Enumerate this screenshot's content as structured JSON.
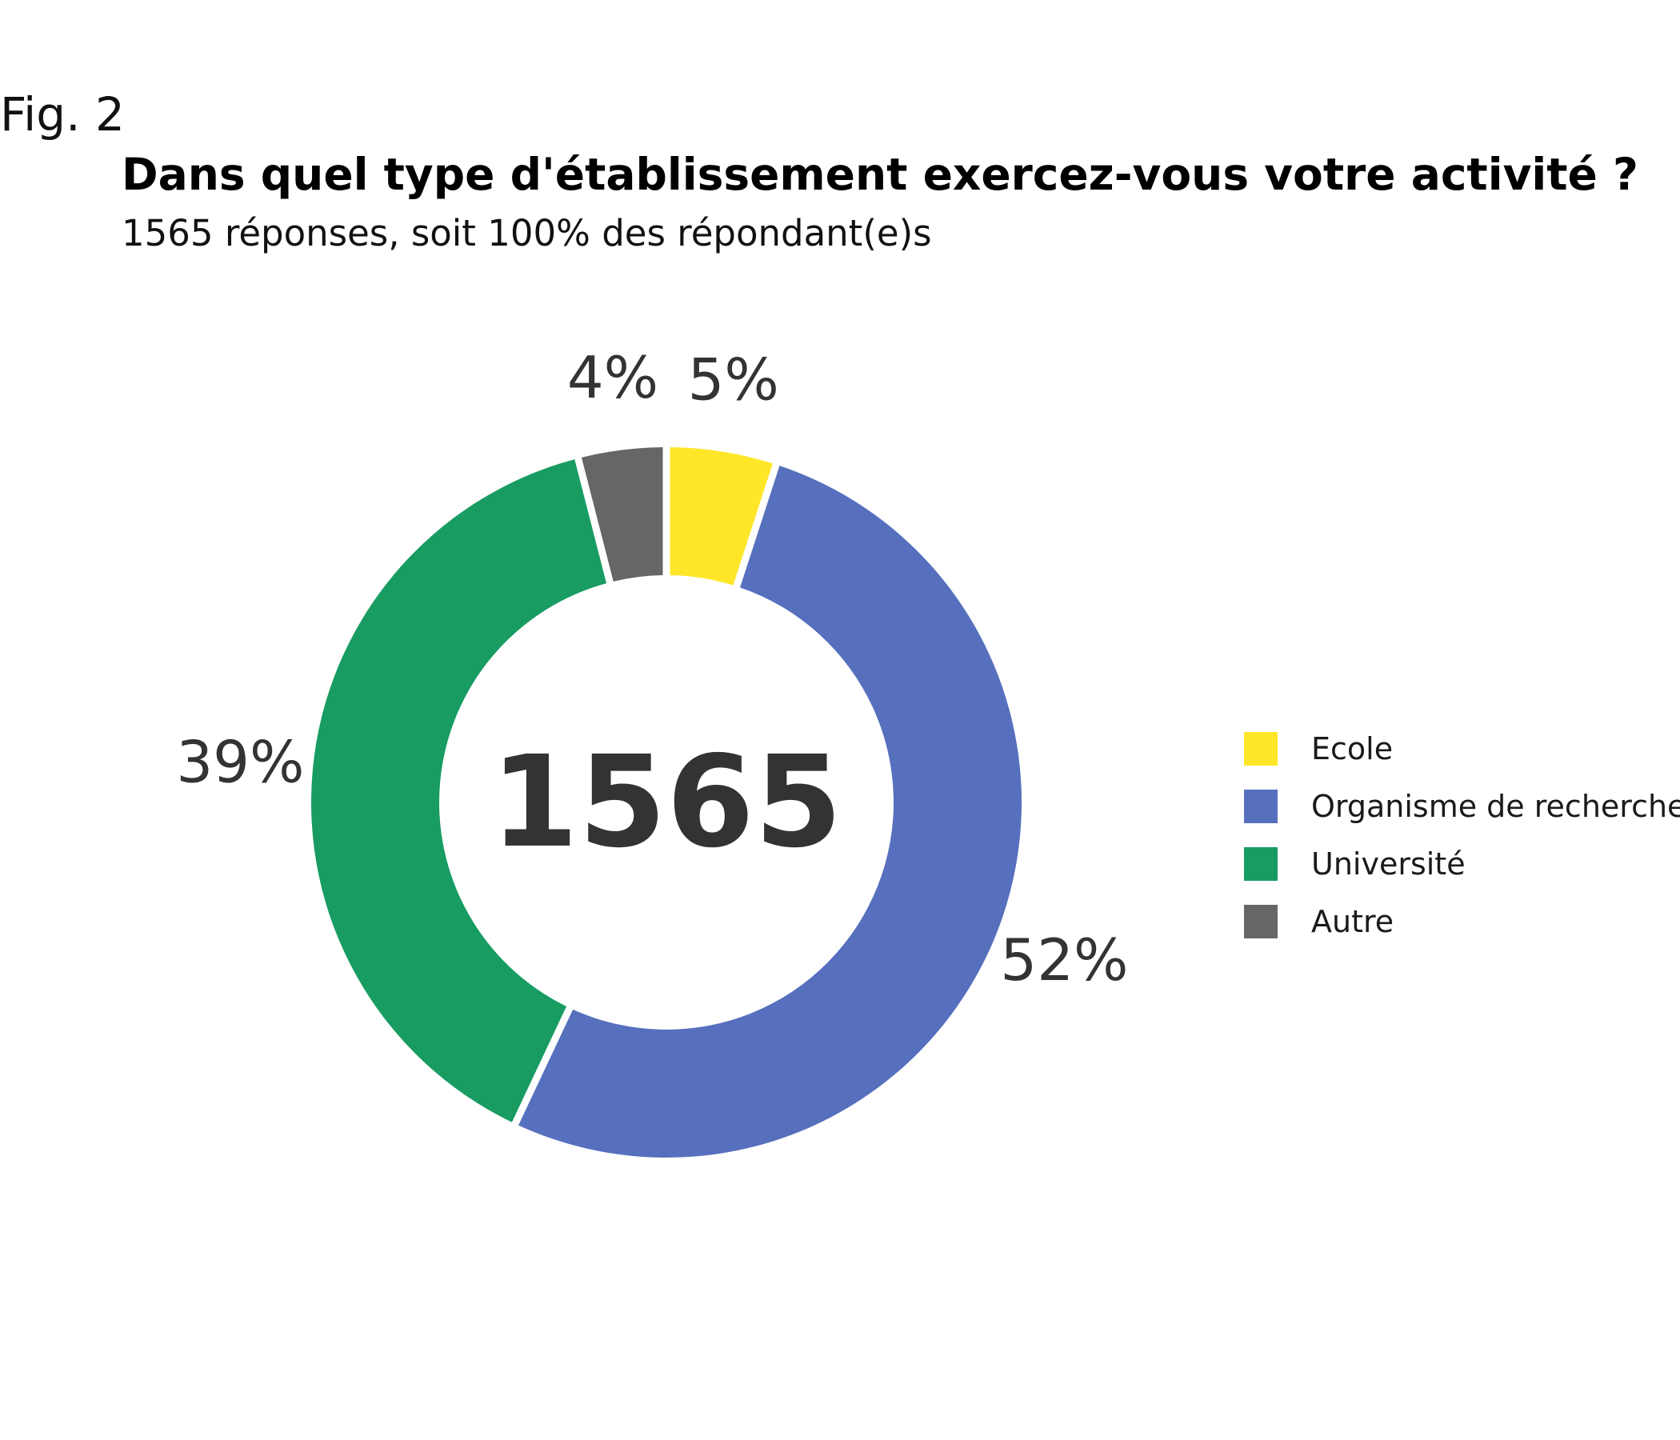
{
  "figure": {
    "label": "Fig. 2",
    "title": "Dans quel type d'établissement exercez-vous votre activité ?",
    "subtitle": "1565 réponses, soit 100% des répondant(e)s"
  },
  "chart_data": {
    "type": "pie",
    "variant": "donut",
    "center_label": "1565",
    "categories": [
      "Ecole",
      "Organisme de recherche",
      "Université",
      "Autre"
    ],
    "values": [
      5,
      52,
      39,
      4
    ],
    "value_labels": [
      "5%",
      "52%",
      "39%",
      "4%"
    ],
    "colors": [
      "#ffe629",
      "#5670be",
      "#189c62",
      "#666666"
    ],
    "legend": "right"
  }
}
